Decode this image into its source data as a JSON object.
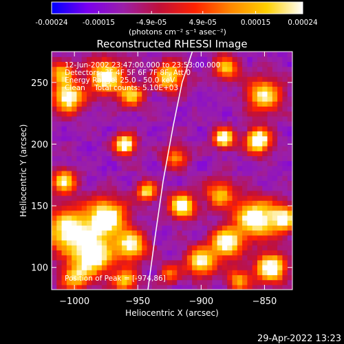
{
  "colorbar": {
    "tick_labels": [
      "-0.00024",
      "-0.00015",
      "-4.9e-05",
      "4.9e-05",
      "0.00015",
      "0.00024"
    ],
    "tick_values": [
      -0.00024,
      -0.00015,
      -4.9e-05,
      4.9e-05,
      0.00015,
      0.00024
    ],
    "range": [
      -0.00024,
      0.00024
    ],
    "unit_label": "(photons cm⁻² s⁻¹ asec⁻²)",
    "colors": [
      "#0000ff",
      "#7a00ee",
      "#9b1fa8",
      "#c0103a",
      "#ff2200",
      "#ff8800",
      "#ffd000",
      "#ffffff"
    ]
  },
  "chart_data": {
    "type": "heatmap",
    "title": "Reconstructed RHESSI Image",
    "xlabel": "Heliocentric X (arcsec)",
    "ylabel": "Heliocentric Y (arcsec)",
    "xlim": [
      -1018,
      -828
    ],
    "ylim": [
      82,
      275
    ],
    "xticks": [
      -1000,
      -950,
      -900,
      -850
    ],
    "xtick_labels": [
      "−1000",
      "−950",
      "−900",
      "−850"
    ],
    "yticks": [
      100,
      150,
      200,
      250
    ],
    "ytick_labels": [
      "100",
      "150",
      "200",
      "250"
    ],
    "annotations": [
      "12-Jun-2002 23:47:00.000 to 23:53:00.000",
      "Detectors: 3F 4F 5F 6F 7F 8F, Att 0",
      "Energy Range: 25.0 - 50.0 keV",
      "Clean    Total counts: 5.10E+03"
    ],
    "peak_label": "Position of Peak = [-974,86]",
    "limb_curve": {
      "x": [
        -942,
        -937,
        -930,
        -922,
        -915,
        -907
      ],
      "y": [
        82,
        120,
        170,
        215,
        250,
        275
      ]
    },
    "hotspots": [
      {
        "x": -975,
        "y": 255,
        "r": 14,
        "v": 0.8
      },
      {
        "x": -1005,
        "y": 238,
        "r": 12,
        "v": 0.85
      },
      {
        "x": -1010,
        "y": 258,
        "r": 10,
        "v": 0.6
      },
      {
        "x": -960,
        "y": 200,
        "r": 8,
        "v": 0.95
      },
      {
        "x": -955,
        "y": 240,
        "r": 10,
        "v": 0.6
      },
      {
        "x": -1008,
        "y": 170,
        "r": 10,
        "v": 0.7
      },
      {
        "x": -975,
        "y": 140,
        "r": 16,
        "v": 0.9
      },
      {
        "x": -1005,
        "y": 130,
        "r": 18,
        "v": 0.8
      },
      {
        "x": -985,
        "y": 110,
        "r": 16,
        "v": 0.85
      },
      {
        "x": -955,
        "y": 118,
        "r": 12,
        "v": 0.75
      },
      {
        "x": -960,
        "y": 90,
        "r": 10,
        "v": 0.6
      },
      {
        "x": -1000,
        "y": 92,
        "r": 12,
        "v": 0.55
      },
      {
        "x": -943,
        "y": 162,
        "r": 8,
        "v": 0.7
      },
      {
        "x": -925,
        "y": 255,
        "r": 12,
        "v": 0.7
      },
      {
        "x": -880,
        "y": 262,
        "r": 10,
        "v": 0.6
      },
      {
        "x": -850,
        "y": 240,
        "r": 14,
        "v": 0.7
      },
      {
        "x": -882,
        "y": 205,
        "r": 8,
        "v": 0.9
      },
      {
        "x": -855,
        "y": 203,
        "r": 10,
        "v": 0.95
      },
      {
        "x": -920,
        "y": 190,
        "r": 10,
        "v": 0.45
      },
      {
        "x": -885,
        "y": 160,
        "r": 12,
        "v": 0.55
      },
      {
        "x": -915,
        "y": 150,
        "r": 10,
        "v": 0.9
      },
      {
        "x": -858,
        "y": 140,
        "r": 16,
        "v": 0.85
      },
      {
        "x": -835,
        "y": 140,
        "r": 12,
        "v": 0.7
      },
      {
        "x": -880,
        "y": 120,
        "r": 12,
        "v": 0.85
      },
      {
        "x": -900,
        "y": 105,
        "r": 12,
        "v": 0.75
      },
      {
        "x": -845,
        "y": 100,
        "r": 12,
        "v": 0.9
      },
      {
        "x": -870,
        "y": 90,
        "r": 10,
        "v": 0.5
      },
      {
        "x": -925,
        "y": 95,
        "r": 8,
        "v": 0.45
      }
    ]
  },
  "footer": {
    "timestamp": "29-Apr-2022 13:23"
  }
}
